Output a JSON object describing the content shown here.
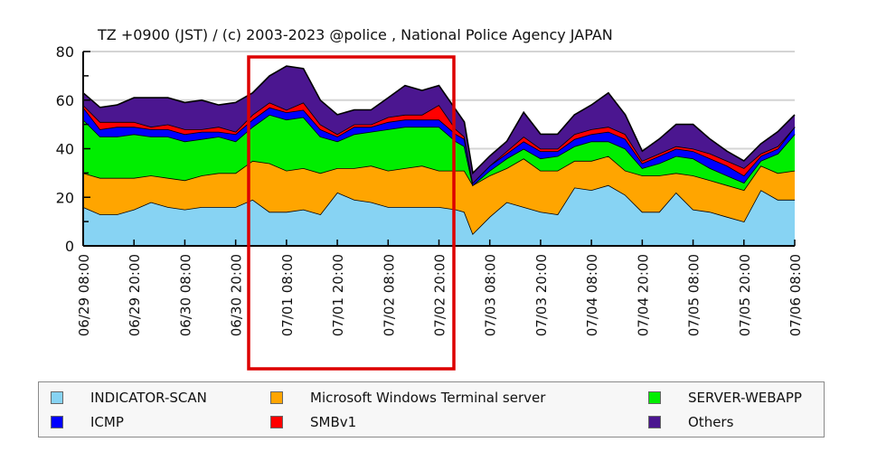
{
  "chart_data": {
    "type": "area",
    "stacked": true,
    "title": "TZ +0900 (JST) / (c) 2003-2023 @police , National Police Agency JAPAN",
    "xlabel": "",
    "ylabel": "",
    "ylim": [
      0,
      80
    ],
    "yticks": [
      0,
      20,
      40,
      60,
      80
    ],
    "grid": true,
    "legend_position": "bottom",
    "x_unit": "hours since 06/29 08:00",
    "xlim": [
      0,
      168
    ],
    "x_tick_values": [
      0,
      12,
      24,
      36,
      48,
      60,
      72,
      84,
      96,
      108,
      120,
      132,
      144,
      156,
      168
    ],
    "x_tick_labels": [
      "06/29 08:00",
      "06/29 20:00",
      "06/30 08:00",
      "06/30 20:00",
      "07/01 08:00",
      "07/01 20:00",
      "07/02 08:00",
      "07/02 20:00",
      "07/03 08:00",
      "07/03 20:00",
      "07/04 08:00",
      "07/04 20:00",
      "07/05 08:00",
      "07/05 20:00",
      "07/06 08:00"
    ],
    "x": [
      0,
      4,
      8,
      12,
      16,
      20,
      24,
      28,
      32,
      36,
      40,
      44,
      48,
      52,
      56,
      60,
      64,
      68,
      72,
      76,
      80,
      84,
      88,
      90,
      92,
      96,
      100,
      104,
      108,
      112,
      116,
      120,
      124,
      128,
      132,
      136,
      140,
      144,
      148,
      152,
      156,
      160,
      164,
      168
    ],
    "series": [
      {
        "name": "INDICATOR-SCAN",
        "color": "#87d3f3",
        "values": [
          16,
          13,
          13,
          15,
          18,
          16,
          15,
          16,
          16,
          16,
          19,
          14,
          14,
          15,
          13,
          22,
          19,
          18,
          16,
          16,
          16,
          16,
          15,
          14,
          5,
          12,
          18,
          16,
          14,
          13,
          24,
          23,
          25,
          21,
          14,
          14,
          22,
          15,
          14,
          12,
          10,
          23,
          19,
          19
        ]
      },
      {
        "name": "Microsoft Windows Terminal server",
        "color": "#ffa500",
        "values": [
          14,
          15,
          15,
          13,
          11,
          12,
          12,
          13,
          14,
          14,
          16,
          20,
          17,
          17,
          17,
          10,
          13,
          15,
          15,
          16,
          17,
          15,
          16,
          17,
          20,
          17,
          14,
          20,
          17,
          18,
          11,
          12,
          12,
          10,
          15,
          15,
          8,
          14,
          13,
          13,
          13,
          10,
          11,
          12
        ]
      },
      {
        "name": "SERVER-WEBAPP",
        "color": "#00ee00",
        "values": [
          22,
          17,
          17,
          18,
          16,
          17,
          16,
          15,
          15,
          13,
          14,
          20,
          21,
          21,
          15,
          11,
          14,
          14,
          17,
          17,
          16,
          18,
          12,
          10,
          0,
          2,
          4,
          4,
          5,
          6,
          6,
          8,
          6,
          9,
          3,
          5,
          7,
          7,
          5,
          4,
          3,
          2,
          8,
          15
        ]
      },
      {
        "name": "ICMP",
        "color": "#0000ff",
        "values": [
          5,
          3,
          4,
          3,
          3,
          3,
          3,
          3,
          2,
          3,
          3,
          3,
          3,
          3,
          3,
          2,
          3,
          2,
          3,
          3,
          3,
          3,
          3,
          3,
          1,
          2,
          2,
          3,
          3,
          2,
          3,
          3,
          4,
          4,
          2,
          3,
          3,
          3,
          4,
          4,
          3,
          2,
          2,
          3
        ]
      },
      {
        "name": "SMBv1",
        "color": "#ff0000",
        "values": [
          1,
          3,
          2,
          2,
          1,
          2,
          2,
          1,
          2,
          1,
          2,
          2,
          1,
          3,
          2,
          1,
          1,
          1,
          2,
          2,
          2,
          6,
          2,
          1,
          0,
          0,
          1,
          2,
          1,
          1,
          2,
          2,
          2,
          2,
          1,
          1,
          1,
          1,
          2,
          2,
          3,
          1,
          1,
          0
        ]
      },
      {
        "name": "Others",
        "color": "#4b1690",
        "values": [
          5,
          6,
          7,
          10,
          12,
          11,
          11,
          12,
          9,
          12,
          9,
          11,
          18,
          14,
          10,
          8,
          6,
          6,
          8,
          12,
          10,
          8,
          8,
          6,
          4,
          4,
          4,
          10,
          6,
          6,
          8,
          10,
          14,
          8,
          4,
          6,
          9,
          10,
          6,
          4,
          3,
          4,
          6,
          5
        ]
      }
    ]
  },
  "annotation": {
    "color": "#dd0000"
  },
  "colors": {
    "gridline": "#d4d4d4",
    "outline": "#000000"
  }
}
